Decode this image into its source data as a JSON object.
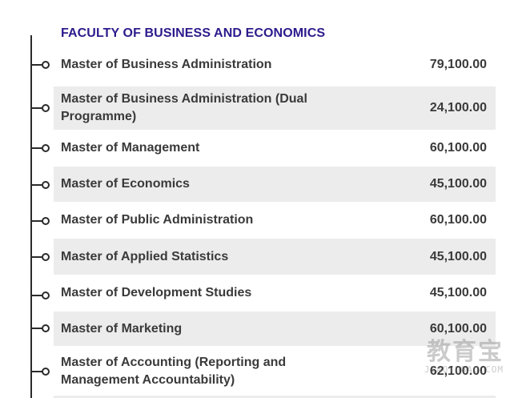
{
  "section": {
    "title": "FACULTY OF BUSINESS AND ECONOMICS"
  },
  "programmes": [
    {
      "name": "Master of Business Administration",
      "fee": "79,100.00"
    },
    {
      "name": "Master of Business Administration (Dual Programme)",
      "fee": "24,100.00"
    },
    {
      "name": "Master of Management",
      "fee": "60,100.00"
    },
    {
      "name": "Master of Economics",
      "fee": "45,100.00"
    },
    {
      "name": "Master of Public Administration",
      "fee": "60,100.00"
    },
    {
      "name": "Master of Applied Statistics",
      "fee": "45,100.00"
    },
    {
      "name": "Master of Development Studies",
      "fee": "45,100.00"
    },
    {
      "name": "Master of Marketing",
      "fee": "60,100.00"
    },
    {
      "name": "Master of Accounting (Reporting and Management Accountability)",
      "fee": "62,100.00"
    }
  ],
  "watermark": {
    "main": "教育宝",
    "sub": "JIAOYUBAO.COM"
  }
}
